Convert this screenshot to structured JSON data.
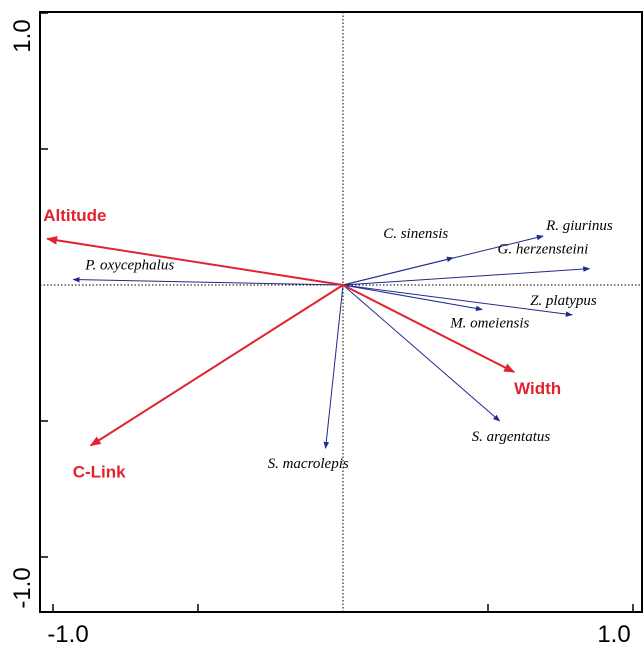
{
  "chart_data": {
    "type": "scatter",
    "subtype": "rda-biplot",
    "title": "",
    "xlabel": "",
    "ylabel": "",
    "xlim": [
      -1.0,
      1.0
    ],
    "ylim": [
      -1.0,
      1.0
    ],
    "x_tick_labels": [
      "-1.0",
      "1.0"
    ],
    "y_tick_labels": [
      "1.0",
      "-1.0"
    ],
    "x_ticks": [
      -1.0,
      -0.5,
      0.0,
      0.5,
      1.0
    ],
    "y_ticks": [
      -1.0,
      -0.5,
      0.0,
      0.5,
      1.0
    ],
    "grid": false,
    "origin_lines": "dotted",
    "species_color": "#1f2a8c",
    "env_color": "#e0232f",
    "species_vectors": [
      {
        "label": "P. oxycephalus",
        "x": -0.93,
        "y": 0.02
      },
      {
        "label": "C. sinensis",
        "x": 0.38,
        "y": 0.1
      },
      {
        "label": "R. giurinus",
        "x": 0.69,
        "y": 0.18
      },
      {
        "label": "G. herzensteini",
        "x": 0.85,
        "y": 0.06
      },
      {
        "label": "Z. platypus",
        "x": 0.79,
        "y": -0.11
      },
      {
        "label": "M. omeiensis",
        "x": 0.48,
        "y": -0.09
      },
      {
        "label": "S. argentatus",
        "x": 0.54,
        "y": -0.5
      },
      {
        "label": "S. macrolepis",
        "x": -0.06,
        "y": -0.6
      }
    ],
    "env_vectors": [
      {
        "label": "Altitude",
        "x": -1.02,
        "y": 0.17
      },
      {
        "label": "Width",
        "x": 0.59,
        "y": -0.32
      },
      {
        "label": "C-Link",
        "x": -0.87,
        "y": -0.59
      }
    ]
  }
}
